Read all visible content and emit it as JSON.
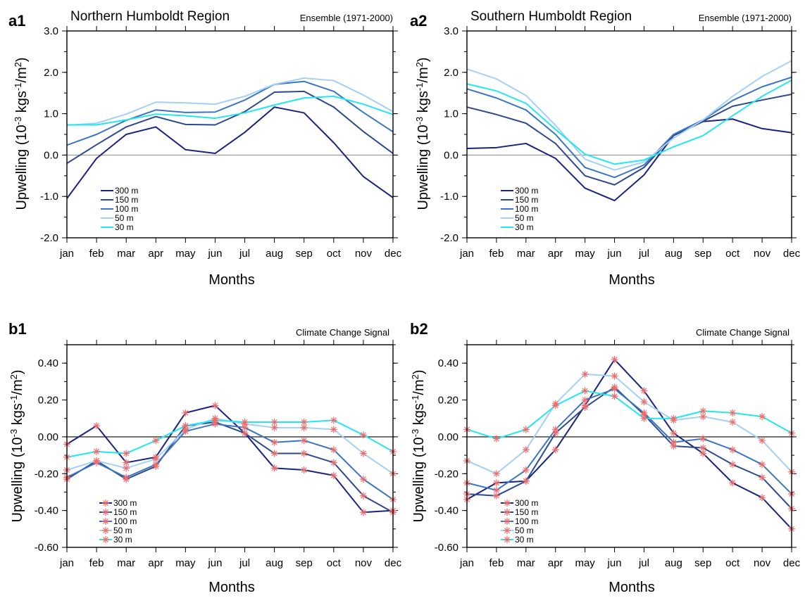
{
  "chart_data": [
    {
      "id": "a1",
      "type": "line",
      "panel_label": "a1",
      "title": "Northern Humboldt Region",
      "subtitle": "Ensemble (1971-2000)",
      "xlabel": "Months",
      "ylabel": "Upwelling (10⁻³ kgs⁻¹/m²)",
      "categories": [
        "jan",
        "feb",
        "mar",
        "apr",
        "may",
        "jun",
        "jul",
        "aug",
        "sep",
        "oct",
        "nov",
        "dec"
      ],
      "ylim": [
        -2.0,
        3.0
      ],
      "yticks": [
        -2.0,
        -1.0,
        0.0,
        1.0,
        2.0,
        3.0
      ],
      "ytick_labels": [
        "-2.0",
        "-1.0",
        "0.0",
        "1.0",
        "2.0",
        "3.0"
      ],
      "markers": false,
      "legend_position": "bottom-left",
      "series": [
        {
          "name": "300 m",
          "color": "#1a237e",
          "values": [
            -1.05,
            -0.08,
            0.5,
            0.68,
            0.13,
            0.04,
            0.55,
            1.16,
            1.02,
            0.3,
            -0.52,
            -1.03
          ]
        },
        {
          "name": "150 m",
          "color": "#2e4a8f",
          "values": [
            -0.2,
            0.25,
            0.68,
            0.93,
            0.74,
            0.73,
            1.05,
            1.52,
            1.54,
            1.16,
            0.57,
            0.04
          ]
        },
        {
          "name": "100 m",
          "color": "#3a75c4",
          "values": [
            0.24,
            0.5,
            0.84,
            1.09,
            1.03,
            1.04,
            1.33,
            1.71,
            1.78,
            1.54,
            1.03,
            0.56
          ]
        },
        {
          "name": "50 m",
          "color": "#a3d1f5",
          "values": [
            0.72,
            0.77,
            0.99,
            1.28,
            1.26,
            1.23,
            1.42,
            1.71,
            1.86,
            1.8,
            1.45,
            1.05
          ]
        },
        {
          "name": "30 m",
          "color": "#22e6f0",
          "values": [
            0.73,
            0.73,
            0.85,
            0.99,
            0.95,
            0.89,
            1.02,
            1.21,
            1.38,
            1.42,
            1.23,
            0.98
          ]
        }
      ]
    },
    {
      "id": "a2",
      "type": "line",
      "panel_label": "a2",
      "title": "Southern Humboldt Region",
      "subtitle": "Ensemble (1971-2000)",
      "xlabel": "Months",
      "ylabel": "Upwelling (10⁻³ kgs⁻¹/m²)",
      "categories": [
        "jan",
        "feb",
        "mar",
        "apr",
        "may",
        "jun",
        "jul",
        "aug",
        "sep",
        "oct",
        "nov",
        "dec"
      ],
      "ylim": [
        -2.0,
        3.0
      ],
      "yticks": [
        -2.0,
        -1.0,
        0.0,
        1.0,
        2.0,
        3.0
      ],
      "ytick_labels": [
        "-2.0",
        "-1.0",
        "0.0",
        "1.0",
        "2.0",
        "3.0"
      ],
      "markers": false,
      "legend_position": "bottom-left",
      "series": [
        {
          "name": "300 m",
          "color": "#1a237e",
          "values": [
            0.16,
            0.18,
            0.28,
            -0.08,
            -0.8,
            -1.1,
            -0.48,
            0.47,
            0.81,
            0.87,
            0.64,
            0.54
          ]
        },
        {
          "name": "150 m",
          "color": "#2e4a8f",
          "values": [
            1.16,
            0.98,
            0.77,
            0.28,
            -0.5,
            -0.72,
            -0.3,
            0.48,
            0.82,
            1.18,
            1.33,
            1.47
          ]
        },
        {
          "name": "100 m",
          "color": "#3a75c4",
          "values": [
            1.6,
            1.38,
            1.09,
            0.5,
            -0.3,
            -0.54,
            -0.24,
            0.5,
            0.85,
            1.32,
            1.65,
            1.88
          ]
        },
        {
          "name": "50 m",
          "color": "#a3d1f5",
          "values": [
            2.08,
            1.84,
            1.44,
            0.72,
            -0.1,
            -0.36,
            -0.17,
            0.41,
            0.85,
            1.42,
            1.9,
            2.28
          ]
        },
        {
          "name": "30 m",
          "color": "#22e6f0",
          "values": [
            1.72,
            1.55,
            1.25,
            0.62,
            0.02,
            -0.22,
            -0.12,
            0.2,
            0.47,
            0.95,
            1.42,
            1.81
          ]
        }
      ]
    },
    {
      "id": "b1",
      "type": "line",
      "panel_label": "b1",
      "title": "",
      "subtitle": "Climate Change Signal",
      "xlabel": "Months",
      "ylabel": "Upwelling (10⁻³ kgs⁻¹/m²)",
      "categories": [
        "jan",
        "feb",
        "mar",
        "apr",
        "may",
        "jun",
        "jul",
        "aug",
        "sep",
        "oct",
        "nov",
        "dec"
      ],
      "ylim": [
        -0.6,
        0.5
      ],
      "yticks": [
        -0.6,
        -0.4,
        -0.2,
        0.0,
        0.2,
        0.4
      ],
      "ytick_labels": [
        "-0.60",
        "-0.40",
        "-0.20",
        "0.00",
        "0.20",
        "0.40"
      ],
      "markers": true,
      "marker_color": "#f06a6a",
      "legend_position": "bottom-left",
      "series": [
        {
          "name": "300 m",
          "color": "#1a237e",
          "values": [
            -0.04,
            0.06,
            -0.14,
            -0.11,
            0.13,
            0.17,
            0.02,
            -0.17,
            -0.18,
            -0.21,
            -0.41,
            -0.4
          ]
        },
        {
          "name": "150 m",
          "color": "#2e4a8f",
          "values": [
            -0.23,
            -0.13,
            -0.23,
            -0.16,
            0.06,
            0.08,
            0.02,
            -0.09,
            -0.09,
            -0.14,
            -0.32,
            -0.41
          ]
        },
        {
          "name": "100 m",
          "color": "#3a75c4",
          "values": [
            -0.22,
            -0.14,
            -0.22,
            -0.15,
            0.03,
            0.07,
            0.05,
            -0.03,
            -0.02,
            -0.07,
            -0.23,
            -0.34
          ]
        },
        {
          "name": "50 m",
          "color": "#a3d1f5",
          "values": [
            -0.18,
            -0.13,
            -0.17,
            -0.12,
            0.04,
            0.1,
            0.07,
            0.05,
            0.05,
            0.04,
            -0.09,
            -0.2
          ]
        },
        {
          "name": "30 m",
          "color": "#22e6f0",
          "values": [
            -0.11,
            -0.08,
            -0.09,
            -0.02,
            0.06,
            0.09,
            0.08,
            0.08,
            0.08,
            0.09,
            0.01,
            -0.08
          ]
        }
      ]
    },
    {
      "id": "b2",
      "type": "line",
      "panel_label": "b2",
      "title": "",
      "subtitle": "Climate Change Signal",
      "xlabel": "Months",
      "ylabel": "Upwelling (10⁻³ kgs⁻¹/m²)",
      "categories": [
        "jan",
        "feb",
        "mar",
        "apr",
        "may",
        "jun",
        "jul",
        "aug",
        "sep",
        "oct",
        "nov",
        "dec"
      ],
      "ylim": [
        -0.6,
        0.5
      ],
      "yticks": [
        -0.6,
        -0.4,
        -0.2,
        0.0,
        0.2,
        0.4
      ],
      "ytick_labels": [
        "-0.60",
        "-0.40",
        "-0.20",
        "0.00",
        "0.20",
        "0.40"
      ],
      "markers": true,
      "marker_color": "#f06a6a",
      "legend_position": "bottom-left",
      "series": [
        {
          "name": "300 m",
          "color": "#1a237e",
          "values": [
            -0.34,
            -0.25,
            -0.24,
            -0.07,
            0.17,
            0.42,
            0.25,
            0.02,
            -0.09,
            -0.25,
            -0.33,
            -0.5
          ]
        },
        {
          "name": "150 m",
          "color": "#2e4a8f",
          "values": [
            -0.31,
            -0.32,
            -0.24,
            0.02,
            0.16,
            0.27,
            0.12,
            -0.05,
            -0.06,
            -0.15,
            -0.22,
            -0.39
          ]
        },
        {
          "name": "100 m",
          "color": "#3a75c4",
          "values": [
            -0.25,
            -0.29,
            -0.18,
            0.04,
            0.2,
            0.26,
            0.13,
            -0.03,
            -0.01,
            -0.07,
            -0.15,
            -0.31
          ]
        },
        {
          "name": "50 m",
          "color": "#a3d1f5",
          "values": [
            -0.13,
            -0.2,
            -0.07,
            0.18,
            0.34,
            0.33,
            0.19,
            0.09,
            0.11,
            0.08,
            -0.02,
            -0.19
          ]
        },
        {
          "name": "30 m",
          "color": "#22e6f0",
          "values": [
            0.04,
            -0.01,
            0.04,
            0.17,
            0.25,
            0.22,
            0.1,
            0.1,
            0.14,
            0.13,
            0.11,
            0.02
          ]
        }
      ]
    }
  ]
}
